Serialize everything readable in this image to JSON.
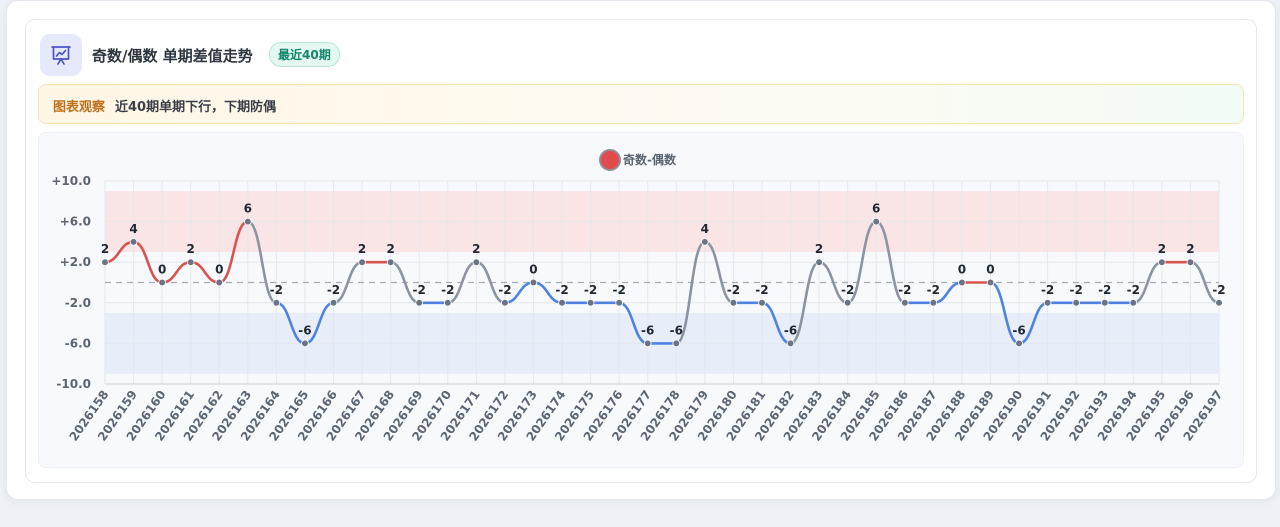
{
  "header": {
    "icon": "presentation-chart-icon",
    "title": "奇数/偶数 单期差值走势",
    "badge": "最近40期"
  },
  "observation": {
    "label": "图表观察",
    "text": "近40期单期下行，下期防偶"
  },
  "colors": {
    "up": "#d9534f",
    "down": "#4f83e0",
    "flat": "#8c94a3",
    "accent": "#12876a"
  },
  "chart_data": {
    "type": "line",
    "legend": {
      "position": "top-center",
      "label": "奇数-偶数"
    },
    "grid": true,
    "ylim": [
      -10,
      10
    ],
    "yticks": [
      "+10.0",
      "+6.0",
      "+2.0",
      "-2.0",
      "-6.0",
      "-10.0"
    ],
    "ytick_values": [
      10,
      6,
      2,
      -2,
      -6,
      -10
    ],
    "bands": [
      {
        "from": 3,
        "to": 9,
        "color": "#f9e4e6"
      },
      {
        "from": -9,
        "to": -3,
        "color": "#e7edf9"
      }
    ],
    "reference_line": 0,
    "categories": [
      "2026158",
      "2026159",
      "2026160",
      "2026161",
      "2026162",
      "2026163",
      "2026164",
      "2026165",
      "2026166",
      "2026167",
      "2026168",
      "2026169",
      "2026170",
      "2026171",
      "2026172",
      "2026173",
      "2026174",
      "2026175",
      "2026176",
      "2026177",
      "2026178",
      "2026179",
      "2026180",
      "2026181",
      "2026182",
      "2026183",
      "2026184",
      "2026185",
      "2026186",
      "2026187",
      "2026188",
      "2026189",
      "2026190",
      "2026191",
      "2026192",
      "2026193",
      "2026194",
      "2026195",
      "2026196",
      "2026197"
    ],
    "series": [
      {
        "name": "奇数-偶数",
        "values": [
          2,
          4,
          0,
          2,
          0,
          6,
          -2,
          -6,
          -2,
          2,
          2,
          -2,
          -2,
          2,
          -2,
          0,
          -2,
          -2,
          -2,
          -6,
          -6,
          4,
          -2,
          -2,
          -6,
          2,
          -2,
          6,
          -2,
          -2,
          0,
          0,
          -6,
          -2,
          -2,
          -2,
          -2,
          2,
          2,
          -2
        ]
      }
    ]
  }
}
